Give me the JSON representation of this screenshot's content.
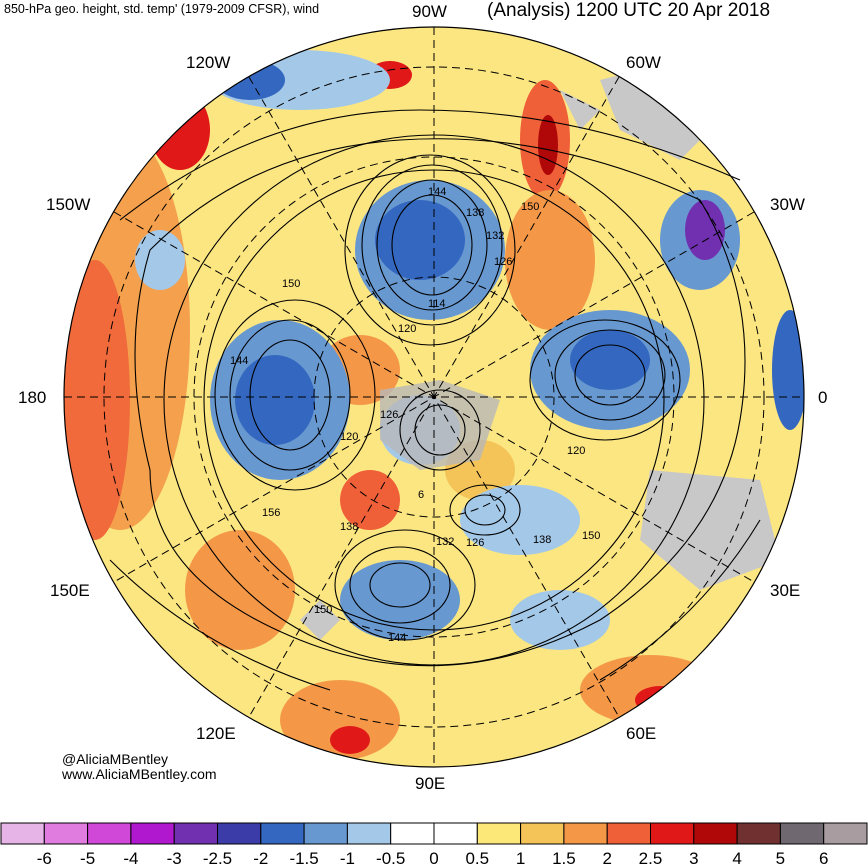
{
  "header": {
    "left_title": "850-hPa geo. height, std. temp' (1979-2009 CFSR), wind",
    "right_title": "(Analysis) 1200 UTC 20 Apr 2018"
  },
  "map_labels": {
    "lon_90w": "90W",
    "lon_60w": "60W",
    "lon_30w": "30W",
    "lon_0": "0",
    "lon_30e": "30E",
    "lon_60e": "60E",
    "lon_90e": "90E",
    "lon_120e": "120E",
    "lon_150e": "150E",
    "lon_180": "180",
    "lon_150w": "150W",
    "lon_120w": "120W"
  },
  "contour_labels": [
    "144",
    "138",
    "132",
    "126",
    "150",
    "114",
    "120",
    "150",
    "144",
    "126",
    "120",
    "120",
    "6",
    "156",
    "138",
    "132",
    "126",
    "138",
    "150",
    "150",
    "144"
  ],
  "credits": {
    "twitter": "@AliciaMBentley",
    "website": "www.AliciaMBentley.com"
  },
  "colorbar": {
    "colors": [
      "#e6b4e6",
      "#e07ce0",
      "#d048d8",
      "#b018d0",
      "#7030b0",
      "#3c3ca8",
      "#3468c0",
      "#6898d0",
      "#a4c8e8",
      "#ffffff",
      "#ffffff",
      "#fbe878",
      "#f4c458",
      "#f49848",
      "#f06038",
      "#e01818",
      "#b00808",
      "#703030",
      "#706870",
      "#a89ca0"
    ],
    "tick_labels": [
      "-6",
      "-5",
      "-4",
      "-3",
      "-2.5",
      "-2",
      "-1.5",
      "-1",
      "-0.5",
      "0",
      "0.5",
      "1",
      "1.5",
      "2",
      "2.5",
      "3",
      "4",
      "5",
      "6"
    ]
  }
}
